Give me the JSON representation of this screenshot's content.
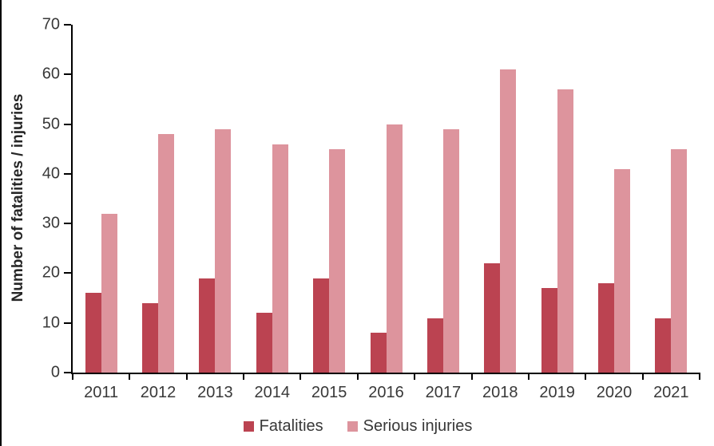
{
  "chart_data": {
    "type": "bar",
    "title": "",
    "xlabel": "",
    "ylabel": "Number of fatalities / injuries",
    "categories": [
      "2011",
      "2012",
      "2013",
      "2014",
      "2015",
      "2016",
      "2017",
      "2018",
      "2019",
      "2020",
      "2021"
    ],
    "series": [
      {
        "name": "Fatalities",
        "color": "#bb4351",
        "values": [
          16,
          14,
          19,
          12,
          19,
          8,
          11,
          22,
          17,
          18,
          11
        ]
      },
      {
        "name": "Serious injuries",
        "color": "#dd949d",
        "values": [
          32,
          48,
          49,
          46,
          45,
          50,
          49,
          61,
          57,
          41,
          45
        ]
      }
    ],
    "ylim": [
      0,
      70
    ],
    "ytick_step": 10,
    "yticks": [
      0,
      10,
      20,
      30,
      40,
      50,
      60,
      70
    ],
    "grid": false,
    "legend_position": "bottom"
  },
  "style": {
    "axis_color": "#000000",
    "text_color": "#383838",
    "background": "#ffffff"
  }
}
